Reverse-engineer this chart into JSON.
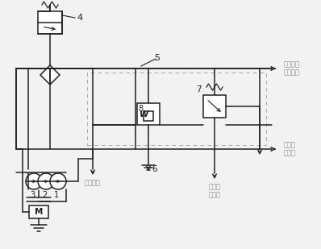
{
  "bg_color": "#f2f2f2",
  "line_color": "#222222",
  "text_color": "#888888",
  "figsize": [
    3.98,
    3.09
  ],
  "dpi": 100,
  "to_steering": "至转向制\n动离合器",
  "to_torque": "至变矩器",
  "to_rear_bridge": "至后桥\n润活滑",
  "to_gearbox": "至变速\n离合器",
  "label1": "1",
  "label2": "2",
  "label3": "3",
  "label4": "4",
  "label5": "5",
  "label6": "6",
  "label7": "7",
  "label8": "8",
  "labelM": "M"
}
